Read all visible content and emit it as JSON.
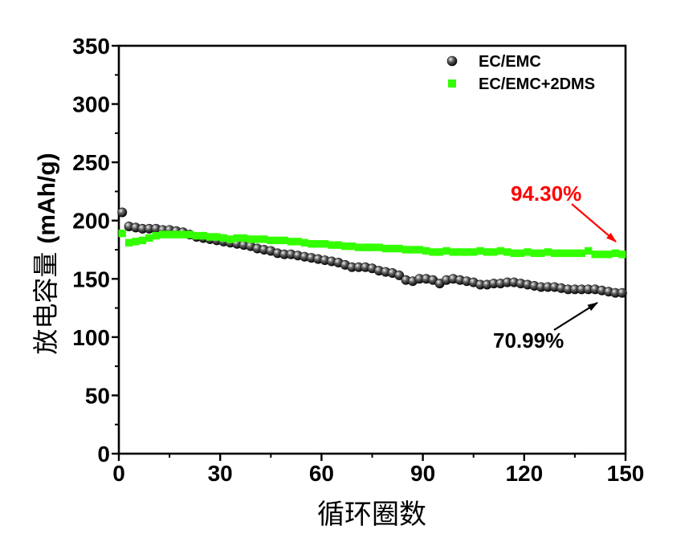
{
  "chart_data": {
    "type": "scatter",
    "xlabel": "循环圈数",
    "ylabel": {
      "text": "放电容量",
      "unit": "(mAh/g)"
    },
    "xlim": [
      0,
      150
    ],
    "ylim": [
      0,
      350
    ],
    "xticks": [
      0,
      30,
      60,
      90,
      120,
      150
    ],
    "yticks": [
      0,
      50,
      100,
      150,
      200,
      250,
      300,
      350
    ],
    "grid": false,
    "legend_position": "top-right",
    "x": [
      1,
      3,
      5,
      7,
      9,
      11,
      13,
      15,
      17,
      19,
      21,
      23,
      25,
      27,
      29,
      31,
      33,
      35,
      37,
      39,
      41,
      43,
      45,
      47,
      49,
      51,
      53,
      55,
      57,
      59,
      61,
      63,
      65,
      67,
      69,
      71,
      73,
      75,
      77,
      79,
      81,
      83,
      85,
      87,
      89,
      91,
      93,
      95,
      97,
      99,
      101,
      103,
      105,
      107,
      109,
      111,
      113,
      115,
      117,
      119,
      121,
      123,
      125,
      127,
      129,
      131,
      133,
      135,
      137,
      139,
      141,
      143,
      145,
      147,
      149
    ],
    "series": [
      {
        "name": "EC/EMC",
        "marker": "sphere",
        "color": "#000000",
        "y": [
          207,
          195,
          194,
          193,
          193,
          193,
          192,
          192,
          191,
          190,
          188,
          186,
          185,
          184,
          183,
          182,
          181,
          180,
          179,
          178,
          176,
          175,
          174,
          172,
          171,
          171,
          170,
          169,
          168,
          167,
          166,
          165,
          164,
          162,
          160,
          160,
          160,
          159,
          157,
          156,
          155,
          153,
          149,
          148,
          150,
          150,
          149,
          146,
          149,
          150,
          149,
          148,
          147,
          145,
          145,
          146,
          146,
          147,
          147,
          146,
          145,
          144,
          143,
          143,
          143,
          142,
          141,
          141,
          141,
          141,
          141,
          140,
          139,
          138,
          138
        ]
      },
      {
        "name": "EC/EMC+2DMS",
        "marker": "square",
        "color": "#33ff00",
        "y": [
          189,
          181,
          182,
          183,
          185,
          187,
          188,
          188,
          188,
          188,
          188,
          187,
          187,
          186,
          186,
          185,
          184,
          185,
          185,
          184,
          184,
          184,
          183,
          183,
          183,
          182,
          182,
          181,
          180,
          180,
          180,
          179,
          179,
          178,
          178,
          177,
          177,
          177,
          177,
          176,
          176,
          176,
          175,
          175,
          175,
          174,
          173,
          173,
          174,
          173,
          173,
          173,
          173,
          174,
          173,
          173,
          174,
          173,
          172,
          172,
          173,
          172,
          172,
          173,
          172,
          172,
          172,
          172,
          172,
          174,
          171,
          171,
          171,
          172,
          171
        ]
      }
    ],
    "annotations": [
      {
        "text": "94.30%",
        "color": "#ff0000"
      },
      {
        "text": "70.99%",
        "color": "#000000"
      }
    ]
  }
}
